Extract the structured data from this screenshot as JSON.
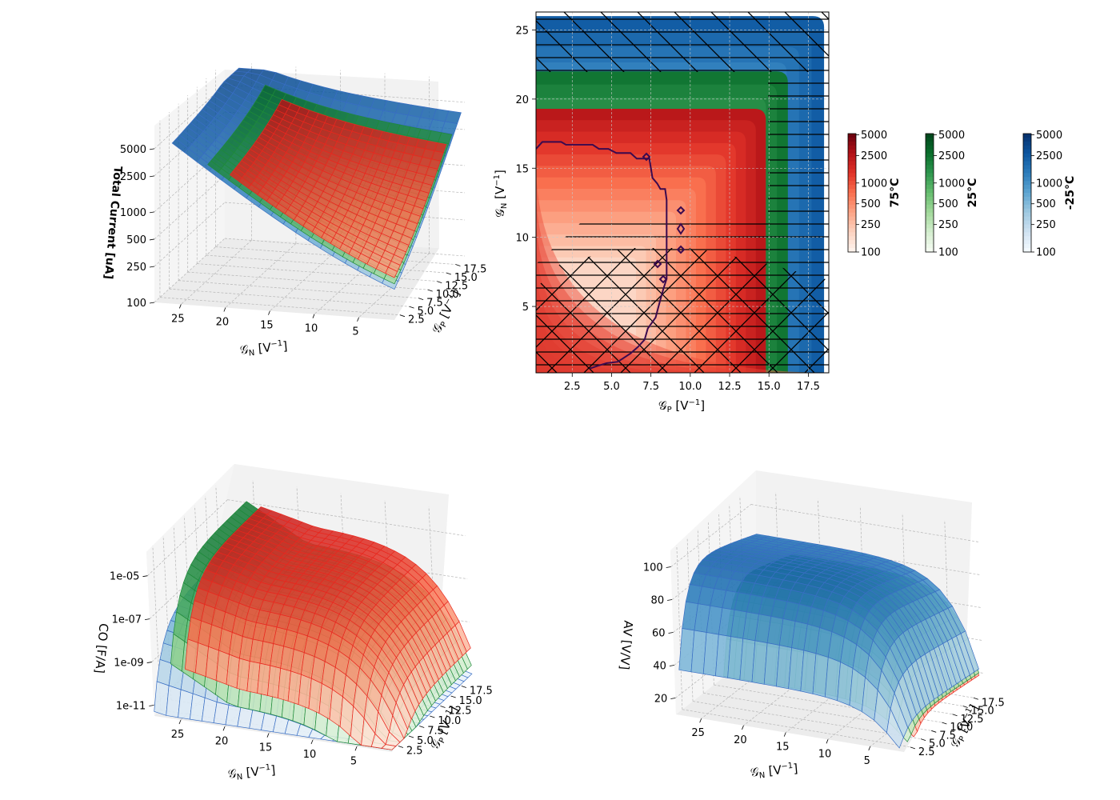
{
  "chart_data": [
    {
      "type": "surface3d",
      "id": "total-current",
      "xlabel": "𝒢N [V⁻¹]",
      "ylabel": "𝒢P [V⁻¹]",
      "zlabel": "Total Current [uA]",
      "zscale": "log",
      "xticks": [
        "25",
        "20",
        "15",
        "10",
        "5"
      ],
      "yticks": [
        "2.5",
        "5.0",
        "7.5",
        "10.0",
        "12.5",
        "15.0",
        "17.5"
      ],
      "zticks": [
        "100",
        "250",
        "500",
        "1000",
        "2500",
        "5000"
      ],
      "zlim": [
        100,
        9000
      ],
      "series": [
        {
          "name": "-25°C",
          "color": "#3a6fc4",
          "xrange": [
            1,
            26
          ],
          "yrange": [
            1,
            19
          ]
        },
        {
          "name": "25°C",
          "color": "#1f8a3a",
          "xrange": [
            1,
            22
          ],
          "yrange": [
            1,
            16.5
          ]
        },
        {
          "name": "75°C",
          "color": "#e8281f",
          "xrange": [
            1,
            19.5
          ],
          "yrange": [
            1,
            15
          ]
        }
      ]
    },
    {
      "type": "contour",
      "id": "contour-map",
      "xlabel": "𝒢P [V⁻¹]",
      "ylabel": "𝒢N [V⁻¹]",
      "xticks": [
        "2.5",
        "5.0",
        "7.5",
        "10.0",
        "12.5",
        "15.0",
        "17.5"
      ],
      "yticks": [
        "5",
        "10",
        "15",
        "20",
        "25"
      ],
      "xlim": [
        0.2,
        18.8
      ],
      "ylim": [
        0.2,
        26.3
      ],
      "grid": true,
      "series": [
        {
          "name": "-25°C",
          "xmax": 18.5,
          "ymax": 26
        },
        {
          "name": "25°C",
          "xmax": 16.2,
          "ymax": 22
        },
        {
          "name": "75°C",
          "xmax": 14.8,
          "ymax": 19.3
        }
      ],
      "colorbars": [
        {
          "label": "75°C",
          "cmap": "Reds",
          "ticks": [
            "5000",
            "2500",
            "1000",
            "500",
            "250",
            "100"
          ]
        },
        {
          "label": "25°C",
          "cmap": "Greens",
          "ticks": [
            "5000",
            "2500",
            "1000",
            "500",
            "250",
            "100"
          ]
        },
        {
          "label": "-25°C",
          "cmap": "Blues",
          "ticks": [
            "5000",
            "2500",
            "1000",
            "500",
            "250",
            "100"
          ]
        }
      ],
      "boundary_line": [
        [
          0.2,
          16.4
        ],
        [
          0.6,
          16.9
        ],
        [
          1.8,
          16.9
        ],
        [
          2.1,
          16.7
        ],
        [
          3.8,
          16.7
        ],
        [
          4.2,
          16.4
        ],
        [
          4.8,
          16.4
        ],
        [
          5.3,
          16.1
        ],
        [
          6.2,
          16.1
        ],
        [
          6.6,
          15.7
        ],
        [
          7.4,
          15.7
        ],
        [
          7.6,
          14.3
        ],
        [
          7.9,
          13.9
        ],
        [
          8.1,
          13.5
        ],
        [
          8.4,
          13.5
        ],
        [
          8.5,
          12.7
        ],
        [
          8.5,
          7.0
        ],
        [
          8.3,
          6.3
        ],
        [
          8.1,
          5.5
        ],
        [
          7.8,
          4.2
        ],
        [
          7.3,
          3.4
        ],
        [
          7.1,
          2.6
        ],
        [
          6.7,
          2.1
        ],
        [
          6.2,
          1.6
        ],
        [
          5.4,
          1.0
        ],
        [
          4.7,
          0.9
        ],
        [
          4.1,
          0.7
        ],
        [
          3.6,
          0.5
        ]
      ]
    },
    {
      "type": "surface3d",
      "id": "co",
      "xlabel": "𝒢N [V⁻¹]",
      "ylabel": "𝒢P [V⁻¹]",
      "zlabel": "CO [F/A]",
      "zscale": "log",
      "xticks": [
        "25",
        "20",
        "15",
        "10",
        "5"
      ],
      "yticks": [
        "2.5",
        "5.0",
        "7.5",
        "10.0",
        "12.5",
        "15.0",
        "17.5"
      ],
      "zticks": [
        "1e-11",
        "1e-09",
        "1e-07",
        "1e-05"
      ],
      "series": [
        {
          "name": "-25°C",
          "color": "#3a6fc4"
        },
        {
          "name": "25°C",
          "color": "#1f8a3a"
        },
        {
          "name": "75°C",
          "color": "#e8281f"
        }
      ]
    },
    {
      "type": "surface3d",
      "id": "av",
      "xlabel": "𝒢N [V⁻¹]",
      "ylabel": "𝒢P [V⁻¹]",
      "zlabel": "AV [V/V]",
      "xticks": [
        "25",
        "20",
        "15",
        "10",
        "5"
      ],
      "yticks": [
        "2.5",
        "5.0",
        "7.5",
        "10.0",
        "12.5",
        "15.0",
        "17.5"
      ],
      "zticks": [
        "20",
        "40",
        "60",
        "80",
        "100"
      ],
      "zlim": [
        10,
        110
      ],
      "series": [
        {
          "name": "-25°C",
          "color": "#3a6fc4",
          "peak": 103
        },
        {
          "name": "25°C",
          "color": "#1f8a3a",
          "peak": 92
        },
        {
          "name": "75°C",
          "color": "#e8281f",
          "peak": 85
        }
      ]
    }
  ]
}
